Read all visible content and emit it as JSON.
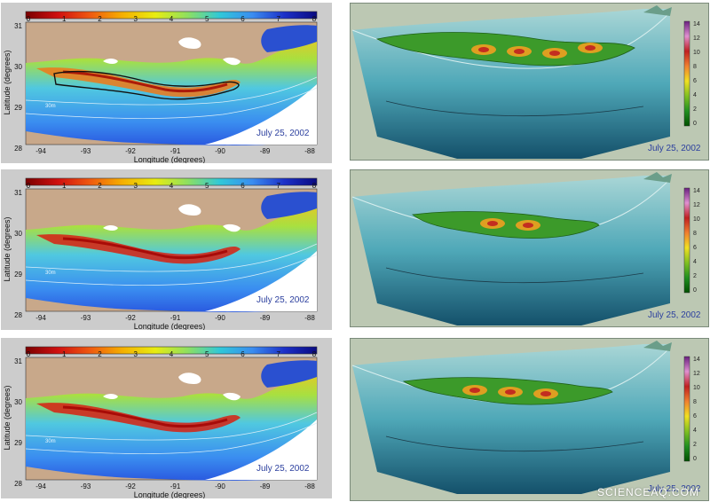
{
  "colorbar": {
    "ticks": [
      "0",
      "1",
      "2",
      "3",
      "4",
      "5",
      "6",
      "7",
      "8"
    ],
    "stops": [
      "#7a0000",
      "#d01010",
      "#f05a10",
      "#f5b000",
      "#e8ec10",
      "#8ee060",
      "#30c8d8",
      "#3a8df0",
      "#1c30c8",
      "#0a0a80"
    ]
  },
  "depth_ticks": [
    "14",
    "12",
    "10",
    "8",
    "6",
    "4",
    "2",
    "0"
  ],
  "depth_stops": [
    "#6a2080",
    "#e090d0",
    "#c02020",
    "#f08030",
    "#f0e020",
    "#80c020",
    "#209020",
    "#005000"
  ],
  "maps": [
    {
      "lat_ticks": [
        "31",
        "30",
        "29",
        "28"
      ],
      "lon_ticks": [
        "-94",
        "-93",
        "-92",
        "-91",
        "-90",
        "-89",
        "-88"
      ],
      "xlabel": "Longitude (degrees)",
      "ylabel": "Latitude (degrees)",
      "date": "July 25, 2002",
      "contour_label": "30m"
    },
    {
      "lat_ticks": [
        "31",
        "30",
        "29",
        "28"
      ],
      "lon_ticks": [
        "-94",
        "-93",
        "-92",
        "-91",
        "-90",
        "-89",
        "-88"
      ],
      "xlabel": "Longitude (degrees)",
      "ylabel": "Latitude (degrees)",
      "date": "July 25, 2002",
      "contour_label": "30m"
    },
    {
      "lat_ticks": [
        "31",
        "30",
        "29",
        "28"
      ],
      "lon_ticks": [
        "-94",
        "-93",
        "-92",
        "-91",
        "-90",
        "-89",
        "-88"
      ],
      "xlabel": "Longitude (degrees)",
      "ylabel": "Latitude (degrees)",
      "date": "July 25, 2002",
      "contour_label": "30m"
    }
  ],
  "scenes": [
    {
      "date": "July 25, 2002"
    },
    {
      "date": "July 25, 2002"
    },
    {
      "date": "July 25, 2002"
    }
  ],
  "watermark": "SCIENCEAQ.COM"
}
